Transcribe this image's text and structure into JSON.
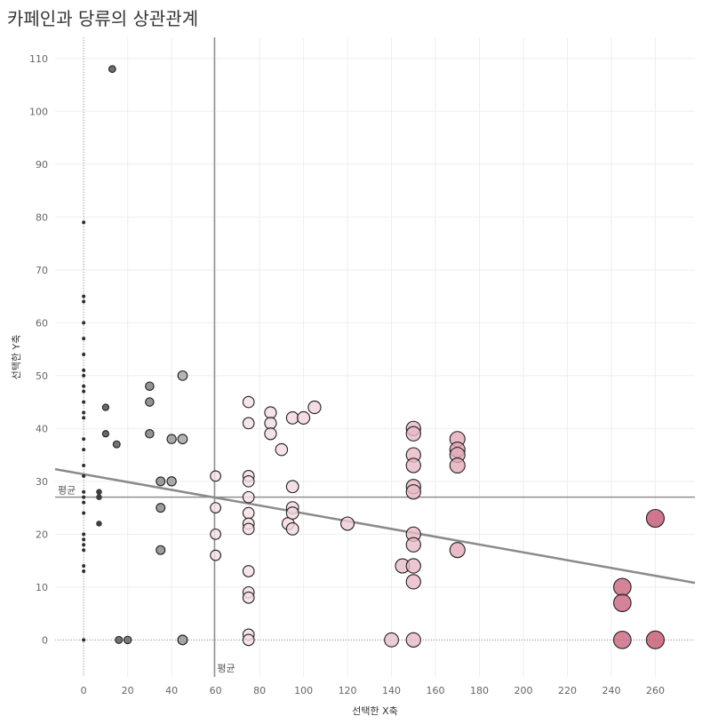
{
  "title": "카페인과 당류의 상관관계",
  "chart_data": {
    "type": "scatter",
    "title": "카페인과 당류의 상관관계",
    "xlabel": "선택한 X축",
    "ylabel": "선택한 Y축",
    "xlim": [
      -13,
      278
    ],
    "ylim": [
      -7,
      114
    ],
    "x_ticks": [
      "0",
      "20",
      "40",
      "60",
      "80",
      "100",
      "120",
      "140",
      "160",
      "180",
      "200",
      "220",
      "240",
      "260"
    ],
    "y_ticks": [
      "0",
      "10",
      "20",
      "30",
      "40",
      "50",
      "60",
      "70",
      "80",
      "90",
      "100",
      "110"
    ],
    "grid": true,
    "average_lines": {
      "x": 59.5,
      "y": 27,
      "x_label": "평균",
      "y_label": "평균"
    },
    "trend_line": {
      "x": [
        -13,
        278
      ],
      "y": [
        32.3,
        10.8
      ]
    },
    "color_scale": {
      "low": "#2e2e2e",
      "mid": "#ffffff",
      "high": "#c45472"
    },
    "points": [
      {
        "x": 0,
        "y": 79
      },
      {
        "x": 0,
        "y": 65
      },
      {
        "x": 0,
        "y": 64
      },
      {
        "x": 0,
        "y": 60
      },
      {
        "x": 0,
        "y": 57
      },
      {
        "x": 0,
        "y": 54
      },
      {
        "x": 0,
        "y": 51
      },
      {
        "x": 0,
        "y": 50
      },
      {
        "x": 0,
        "y": 48
      },
      {
        "x": 0,
        "y": 47
      },
      {
        "x": 0,
        "y": 45
      },
      {
        "x": 0,
        "y": 43
      },
      {
        "x": 0,
        "y": 42
      },
      {
        "x": 0,
        "y": 38
      },
      {
        "x": 0,
        "y": 36
      },
      {
        "x": 0,
        "y": 33
      },
      {
        "x": 0,
        "y": 31
      },
      {
        "x": 0,
        "y": 28
      },
      {
        "x": 0,
        "y": 27
      },
      {
        "x": 0,
        "y": 26
      },
      {
        "x": 0,
        "y": 24
      },
      {
        "x": 0,
        "y": 20
      },
      {
        "x": 0,
        "y": 19
      },
      {
        "x": 0,
        "y": 18
      },
      {
        "x": 0,
        "y": 17
      },
      {
        "x": 0,
        "y": 14
      },
      {
        "x": 0,
        "y": 13
      },
      {
        "x": 0,
        "y": 0
      },
      {
        "x": 13,
        "y": 108
      },
      {
        "x": 10,
        "y": 44
      },
      {
        "x": 10,
        "y": 39
      },
      {
        "x": 15,
        "y": 37
      },
      {
        "x": 7,
        "y": 28
      },
      {
        "x": 7,
        "y": 27
      },
      {
        "x": 7,
        "y": 22
      },
      {
        "x": 16,
        "y": 0
      },
      {
        "x": 20,
        "y": 0
      },
      {
        "x": 30,
        "y": 48
      },
      {
        "x": 30,
        "y": 45
      },
      {
        "x": 30,
        "y": 39
      },
      {
        "x": 35,
        "y": 30
      },
      {
        "x": 35,
        "y": 25
      },
      {
        "x": 35,
        "y": 17
      },
      {
        "x": 40,
        "y": 38
      },
      {
        "x": 40,
        "y": 30
      },
      {
        "x": 45,
        "y": 50
      },
      {
        "x": 45,
        "y": 38
      },
      {
        "x": 45,
        "y": 0
      },
      {
        "x": 45,
        "y": 0
      },
      {
        "x": 60,
        "y": 31
      },
      {
        "x": 60,
        "y": 25
      },
      {
        "x": 60,
        "y": 20
      },
      {
        "x": 60,
        "y": 16
      },
      {
        "x": 75,
        "y": 45
      },
      {
        "x": 75,
        "y": 41
      },
      {
        "x": 75,
        "y": 31
      },
      {
        "x": 75,
        "y": 30
      },
      {
        "x": 75,
        "y": 27
      },
      {
        "x": 75,
        "y": 24
      },
      {
        "x": 75,
        "y": 22
      },
      {
        "x": 75,
        "y": 21
      },
      {
        "x": 75,
        "y": 13
      },
      {
        "x": 75,
        "y": 9
      },
      {
        "x": 75,
        "y": 8
      },
      {
        "x": 75,
        "y": 1
      },
      {
        "x": 75,
        "y": 0
      },
      {
        "x": 85,
        "y": 43
      },
      {
        "x": 85,
        "y": 41
      },
      {
        "x": 85,
        "y": 39
      },
      {
        "x": 90,
        "y": 36
      },
      {
        "x": 93,
        "y": 22
      },
      {
        "x": 95,
        "y": 42
      },
      {
        "x": 95,
        "y": 29
      },
      {
        "x": 95,
        "y": 25
      },
      {
        "x": 95,
        "y": 24
      },
      {
        "x": 95,
        "y": 21
      },
      {
        "x": 100,
        "y": 42
      },
      {
        "x": 105,
        "y": 44
      },
      {
        "x": 120,
        "y": 22
      },
      {
        "x": 140,
        "y": 0
      },
      {
        "x": 145,
        "y": 14
      },
      {
        "x": 150,
        "y": 40
      },
      {
        "x": 150,
        "y": 39
      },
      {
        "x": 150,
        "y": 35
      },
      {
        "x": 150,
        "y": 33
      },
      {
        "x": 150,
        "y": 29
      },
      {
        "x": 150,
        "y": 28
      },
      {
        "x": 150,
        "y": 20
      },
      {
        "x": 150,
        "y": 18
      },
      {
        "x": 150,
        "y": 14
      },
      {
        "x": 150,
        "y": 11
      },
      {
        "x": 150,
        "y": 0
      },
      {
        "x": 170,
        "y": 38
      },
      {
        "x": 170,
        "y": 36
      },
      {
        "x": 170,
        "y": 35
      },
      {
        "x": 170,
        "y": 33
      },
      {
        "x": 170,
        "y": 17
      },
      {
        "x": 245,
        "y": 10
      },
      {
        "x": 245,
        "y": 7
      },
      {
        "x": 245,
        "y": 0
      },
      {
        "x": 260,
        "y": 23
      },
      {
        "x": 260,
        "y": 0
      }
    ]
  }
}
